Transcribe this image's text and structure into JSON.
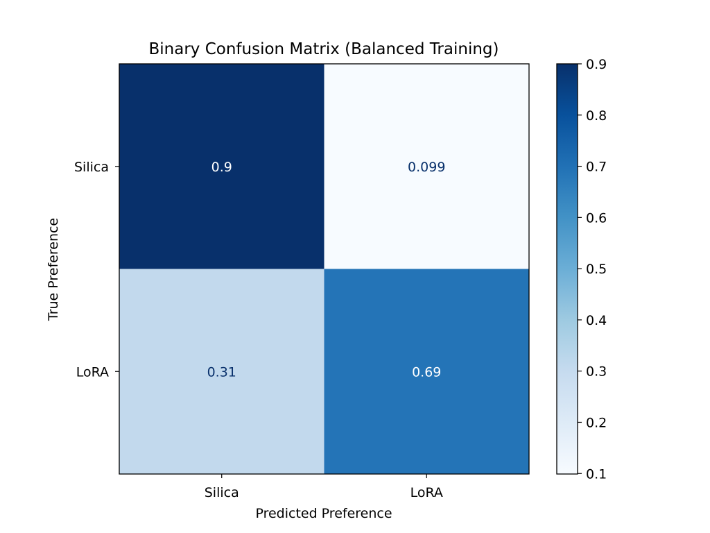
{
  "chart_data": {
    "type": "heatmap",
    "title": "Binary Confusion Matrix (Balanced Training)",
    "xlabel": "Predicted Preference",
    "ylabel": "True Preference",
    "x_categories": [
      "Silica",
      "LoRA"
    ],
    "y_categories": [
      "Silica",
      "LoRA"
    ],
    "values": [
      [
        0.9,
        0.099
      ],
      [
        0.31,
        0.69
      ]
    ],
    "value_labels": [
      [
        "0.9",
        "0.099"
      ],
      [
        "0.31",
        "0.69"
      ]
    ],
    "colormap": "Blues",
    "colorbar": {
      "range": [
        0.099,
        0.9
      ],
      "ticks": [
        0.1,
        0.2,
        0.3,
        0.4,
        0.5,
        0.6,
        0.7,
        0.8,
        0.9
      ],
      "tick_labels": [
        "0.1",
        "0.2",
        "0.3",
        "0.4",
        "0.5",
        "0.6",
        "0.7",
        "0.8",
        "0.9"
      ]
    },
    "text_colors": {
      "dark_cell": "#ffffff",
      "light_cell": "#08306b"
    },
    "grid": false
  }
}
